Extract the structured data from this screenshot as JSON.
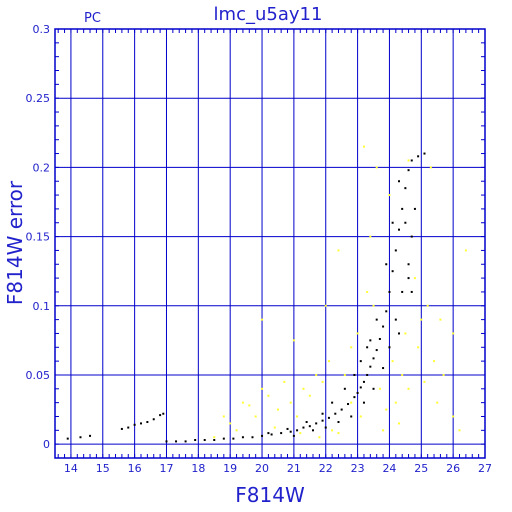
{
  "chart_data": {
    "type": "scatter",
    "title": "lmc_u5ay11",
    "corner_label": "PC",
    "xlabel": "F814W",
    "ylabel": "F814W error",
    "xlim": [
      13.5,
      27
    ],
    "ylim": [
      -0.01,
      0.3
    ],
    "xticks": [
      14,
      15,
      16,
      17,
      18,
      19,
      20,
      21,
      22,
      23,
      24,
      25,
      26,
      27
    ],
    "yticks": [
      0,
      0.05,
      0.1,
      0.15,
      0.2,
      0.25,
      0.3
    ],
    "ytick_labels": [
      "0",
      "0.05",
      "0.1",
      "0.15",
      "0.2",
      "0.25",
      "0.3"
    ],
    "grid": true,
    "colors": {
      "frame": "#0000cc",
      "grid": "#0000cc",
      "text": "#2222cc",
      "series_black": "#000000",
      "series_yellow": "#ffff33"
    },
    "series": [
      {
        "color": "black",
        "points": [
          [
            13.9,
            0.004
          ],
          [
            14.3,
            0.005
          ],
          [
            14.6,
            0.006
          ],
          [
            15.6,
            0.011
          ],
          [
            15.8,
            0.012
          ],
          [
            16.0,
            0.014
          ],
          [
            16.2,
            0.015
          ],
          [
            16.4,
            0.016
          ],
          [
            16.6,
            0.018
          ],
          [
            16.8,
            0.021
          ],
          [
            16.9,
            0.022
          ],
          [
            17.0,
            0.002
          ],
          [
            17.3,
            0.002
          ],
          [
            17.6,
            0.002
          ],
          [
            17.9,
            0.003
          ],
          [
            18.2,
            0.003
          ],
          [
            18.5,
            0.003
          ],
          [
            18.8,
            0.004
          ],
          [
            19.1,
            0.004
          ],
          [
            19.4,
            0.005
          ],
          [
            19.7,
            0.005
          ],
          [
            20.0,
            0.006
          ],
          [
            20.3,
            0.007
          ],
          [
            20.6,
            0.008
          ],
          [
            20.9,
            0.009
          ],
          [
            21.1,
            0.01
          ],
          [
            21.3,
            0.012
          ],
          [
            21.5,
            0.013
          ],
          [
            21.7,
            0.015
          ],
          [
            21.9,
            0.017
          ],
          [
            22.1,
            0.019
          ],
          [
            22.3,
            0.022
          ],
          [
            22.5,
            0.025
          ],
          [
            22.7,
            0.029
          ],
          [
            22.9,
            0.034
          ],
          [
            23.0,
            0.037
          ],
          [
            23.1,
            0.041
          ],
          [
            23.2,
            0.045
          ],
          [
            23.3,
            0.05
          ],
          [
            23.4,
            0.056
          ],
          [
            23.5,
            0.062
          ],
          [
            23.6,
            0.068
          ],
          [
            23.7,
            0.076
          ],
          [
            23.8,
            0.085
          ],
          [
            23.9,
            0.096
          ],
          [
            24.0,
            0.11
          ],
          [
            24.1,
            0.125
          ],
          [
            24.2,
            0.14
          ],
          [
            24.3,
            0.155
          ],
          [
            24.4,
            0.17
          ],
          [
            24.5,
            0.185
          ],
          [
            24.6,
            0.198
          ],
          [
            24.7,
            0.205
          ],
          [
            24.9,
            0.208
          ],
          [
            25.1,
            0.21
          ],
          [
            21.0,
            0.006
          ],
          [
            21.6,
            0.01
          ],
          [
            22.0,
            0.012
          ],
          [
            22.4,
            0.016
          ],
          [
            22.8,
            0.02
          ],
          [
            23.2,
            0.03
          ],
          [
            23.5,
            0.04
          ],
          [
            23.8,
            0.055
          ],
          [
            24.0,
            0.07
          ],
          [
            24.2,
            0.09
          ],
          [
            24.4,
            0.11
          ],
          [
            24.6,
            0.13
          ],
          [
            24.7,
            0.15
          ],
          [
            24.8,
            0.17
          ],
          [
            24.6,
            0.12
          ],
          [
            24.3,
            0.08
          ],
          [
            23.6,
            0.09
          ],
          [
            23.4,
            0.075
          ],
          [
            23.9,
            0.13
          ],
          [
            24.1,
            0.16
          ],
          [
            24.3,
            0.19
          ],
          [
            24.5,
            0.16
          ],
          [
            24.7,
            0.11
          ],
          [
            22.6,
            0.04
          ],
          [
            22.9,
            0.05
          ],
          [
            23.1,
            0.06
          ],
          [
            23.3,
            0.07
          ],
          [
            22.2,
            0.03
          ],
          [
            21.9,
            0.022
          ],
          [
            21.4,
            0.016
          ],
          [
            20.8,
            0.011
          ],
          [
            20.2,
            0.008
          ]
        ]
      },
      {
        "color": "yellow",
        "points": [
          [
            18.5,
            0.005
          ],
          [
            19.0,
            0.015
          ],
          [
            19.4,
            0.03
          ],
          [
            19.8,
            0.02
          ],
          [
            20.0,
            0.04
          ],
          [
            20.2,
            0.035
          ],
          [
            20.5,
            0.025
          ],
          [
            20.7,
            0.045
          ],
          [
            20.9,
            0.03
          ],
          [
            21.1,
            0.02
          ],
          [
            21.3,
            0.04
          ],
          [
            21.5,
            0.035
          ],
          [
            21.7,
            0.05
          ],
          [
            21.9,
            0.045
          ],
          [
            22.1,
            0.06
          ],
          [
            22.2,
            0.01
          ],
          [
            22.4,
            0.008
          ],
          [
            22.6,
            0.05
          ],
          [
            22.8,
            0.07
          ],
          [
            23.0,
            0.08
          ],
          [
            23.1,
            0.02
          ],
          [
            23.3,
            0.11
          ],
          [
            23.5,
            0.1
          ],
          [
            23.7,
            0.04
          ],
          [
            23.9,
            0.025
          ],
          [
            24.1,
            0.06
          ],
          [
            24.2,
            0.03
          ],
          [
            24.4,
            0.05
          ],
          [
            24.5,
            0.08
          ],
          [
            24.6,
            0.04
          ],
          [
            24.8,
            0.12
          ],
          [
            24.9,
            0.07
          ],
          [
            25.0,
            0.09
          ],
          [
            25.2,
            0.1
          ],
          [
            25.3,
            0.2
          ],
          [
            25.4,
            0.06
          ],
          [
            25.5,
            0.03
          ],
          [
            25.7,
            0.05
          ],
          [
            26.0,
            0.02
          ],
          [
            26.2,
            0.01
          ],
          [
            26.4,
            0.14
          ],
          [
            26.0,
            0.08
          ],
          [
            23.2,
            0.215
          ],
          [
            23.6,
            0.2
          ],
          [
            24.0,
            0.18
          ],
          [
            22.4,
            0.14
          ],
          [
            20.0,
            0.09
          ],
          [
            21.0,
            0.075
          ],
          [
            22.0,
            0.1
          ],
          [
            23.4,
            0.15
          ],
          [
            24.6,
            0.205
          ],
          [
            18.8,
            0.02
          ],
          [
            19.2,
            0.01
          ],
          [
            19.6,
            0.028
          ],
          [
            20.4,
            0.012
          ],
          [
            21.2,
            0.008
          ],
          [
            21.8,
            0.005
          ],
          [
            22.8,
            0.03
          ],
          [
            23.8,
            0.01
          ],
          [
            24.3,
            0.015
          ],
          [
            25.1,
            0.045
          ],
          [
            25.6,
            0.09
          ]
        ]
      }
    ]
  }
}
